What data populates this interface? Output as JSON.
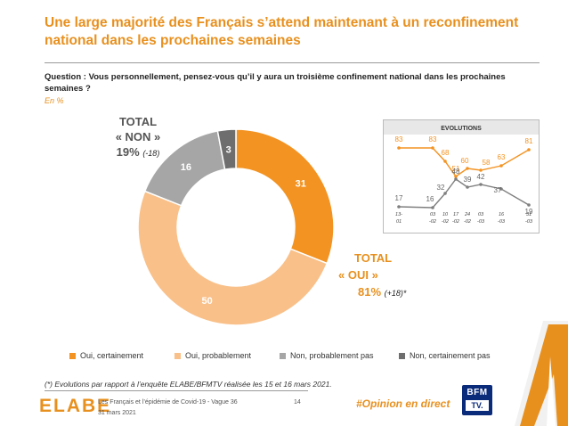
{
  "header": {
    "title": "Une large majorité des Français s’attend maintenant à un reconfinement national dans les prochaines semaines",
    "question": "Question : Vous personnellement, pensez-vous qu’il y aura un troisième confinement national dans les prochaines semaines ?",
    "unit": "En %"
  },
  "totals": {
    "non": {
      "line1": "TOTAL",
      "line2": "« NON »",
      "value": "19%",
      "delta": "(-18)"
    },
    "oui": {
      "line1": "TOTAL",
      "line2": "« OUI »",
      "value": "81%",
      "delta": "(+18)*"
    }
  },
  "colors": {
    "oui_certainement": "#f39322",
    "oui_probablement": "#f9c089",
    "non_probablement_pas": "#a6a6a6",
    "non_certainement_pas": "#6e6e6e",
    "accent": "#e8901e"
  },
  "chart_data": [
    {
      "type": "pie",
      "variant": "donut",
      "categories": [
        "Oui, certainement",
        "Oui, probablement",
        "Non, probablement pas",
        "Non, certainement pas"
      ],
      "values": [
        31,
        50,
        16,
        3
      ],
      "legend": "bottom"
    },
    {
      "type": "line",
      "title": "EVOLUTIONS",
      "x": [
        "13-01",
        "03-02",
        "10-02",
        "17-02",
        "24-02",
        "03-03",
        "16-03",
        "31-03"
      ],
      "series": [
        {
          "name": "TOTAL « OUI »",
          "values": [
            83,
            83,
            68,
            51,
            60,
            58,
            63,
            81
          ]
        },
        {
          "name": "TOTAL « NON »",
          "values": [
            17,
            16,
            32,
            48,
            39,
            42,
            37,
            19
          ]
        }
      ],
      "ylim": [
        0,
        100
      ]
    }
  ],
  "evolution_ticks": [
    {
      "top": "13-",
      "bottom": "01"
    },
    {
      "top": "03",
      "bottom": "-02"
    },
    {
      "top": "10",
      "bottom": "-02"
    },
    {
      "top": "17",
      "bottom": "-02"
    },
    {
      "top": "24",
      "bottom": "-02"
    },
    {
      "top": "03",
      "bottom": "-03"
    },
    {
      "top": "16",
      "bottom": "-03"
    },
    {
      "top": "31",
      "bottom": "-03"
    }
  ],
  "footer": {
    "footnote": "(*) Evolutions par rapport à l’enquête ELABE/BFMTV réalisée les 15 et 16 mars 2021.",
    "logo": "ELABE",
    "study": "Les Français et l’épidémie de Covid-19 - Vague 36",
    "date": "31 mars 2021",
    "page": "14",
    "hashtag": "#Opinion en direct",
    "partner_top": "BFM",
    "partner_bottom": "TV."
  }
}
